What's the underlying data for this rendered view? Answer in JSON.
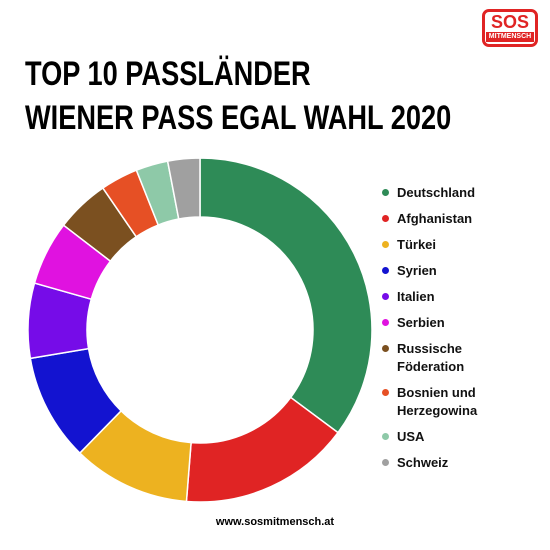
{
  "logo": {
    "name": "SOS",
    "tagline": "MITMENSCH"
  },
  "footer": "www.sosmitmensch.at",
  "chart_data": {
    "type": "donut",
    "title": "TOP 10 PASSLÄNDER\nWIENER PASS EGAL WAHL 2020",
    "series": [
      {
        "name": "Deutschland",
        "color": "#2e8b57",
        "values": [
          35
        ]
      },
      {
        "name": "Afghanistan",
        "color": "#e02424",
        "values": [
          16
        ]
      },
      {
        "name": "Türkei",
        "color": "#edb220",
        "values": [
          11
        ]
      },
      {
        "name": "Syrien",
        "color": "#1313d0",
        "values": [
          10
        ]
      },
      {
        "name": "Italien",
        "color": "#760ce8",
        "values": [
          7
        ]
      },
      {
        "name": "Serbien",
        "color": "#e012e0",
        "values": [
          6
        ]
      },
      {
        "name": "Russische\nFöderation",
        "color": "#7b5020",
        "values": [
          5
        ]
      },
      {
        "name": "Bosnien und\nHerzegowina",
        "color": "#e65025",
        "values": [
          3.5
        ]
      },
      {
        "name": "USA",
        "color": "#8ec9a8",
        "values": [
          3
        ]
      },
      {
        "name": "Schweiz",
        "color": "#a0a0a0",
        "values": [
          3
        ]
      }
    ],
    "legend": "right"
  }
}
